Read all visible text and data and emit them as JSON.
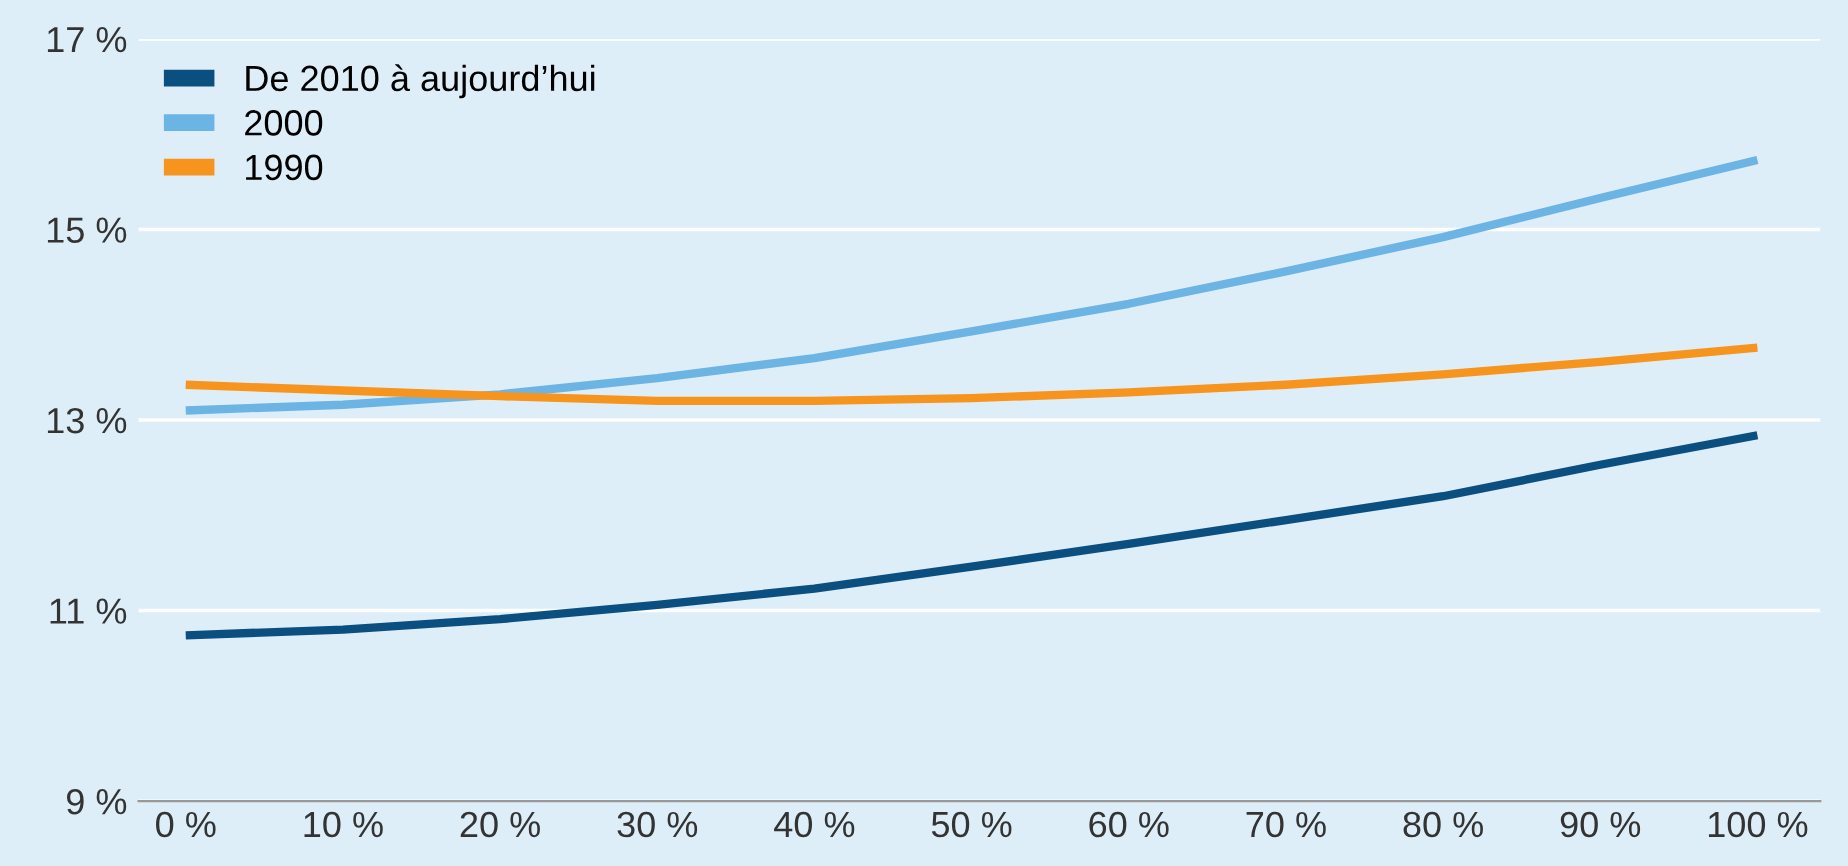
{
  "chart_data": {
    "type": "line",
    "x": [
      0,
      10,
      20,
      30,
      40,
      50,
      60,
      70,
      80,
      90,
      100
    ],
    "series": [
      {
        "name": "De 2010 à aujourd’hui",
        "color": "#0b4f80",
        "values": [
          10.74,
          10.8,
          10.91,
          11.06,
          11.23,
          11.46,
          11.7,
          11.95,
          12.2,
          12.53,
          12.84
        ]
      },
      {
        "name": "2000",
        "color": "#6cb4e4",
        "values": [
          13.1,
          13.16,
          13.27,
          13.44,
          13.65,
          13.93,
          14.22,
          14.56,
          14.92,
          15.33,
          15.73
        ]
      },
      {
        "name": "1990",
        "color": "#f7941d",
        "values": [
          13.37,
          13.31,
          13.25,
          13.2,
          13.2,
          13.23,
          13.29,
          13.37,
          13.48,
          13.61,
          13.76
        ]
      }
    ],
    "xlim": [
      -3,
      104
    ],
    "ylim": [
      9,
      17
    ],
    "xticks": [
      {
        "value": 0,
        "label": "0 %"
      },
      {
        "value": 10,
        "label": "10 %"
      },
      {
        "value": 20,
        "label": "20 %"
      },
      {
        "value": 30,
        "label": "30 %"
      },
      {
        "value": 40,
        "label": "40 %"
      },
      {
        "value": 50,
        "label": "50 %"
      },
      {
        "value": 60,
        "label": "60 %"
      },
      {
        "value": 70,
        "label": "70 %"
      },
      {
        "value": 80,
        "label": "80 %"
      },
      {
        "value": 90,
        "label": "90 %"
      },
      {
        "value": 100,
        "label": "100 %"
      }
    ],
    "yticks": [
      {
        "value": 9,
        "label": "9 %"
      },
      {
        "value": 11,
        "label": "11 %"
      },
      {
        "value": 13,
        "label": "13 %"
      },
      {
        "value": 15,
        "label": "15 %"
      },
      {
        "value": 17,
        "label": "17 %"
      }
    ],
    "grid": "y",
    "legend": "top left",
    "marker": "none",
    "line_style": "solid"
  }
}
